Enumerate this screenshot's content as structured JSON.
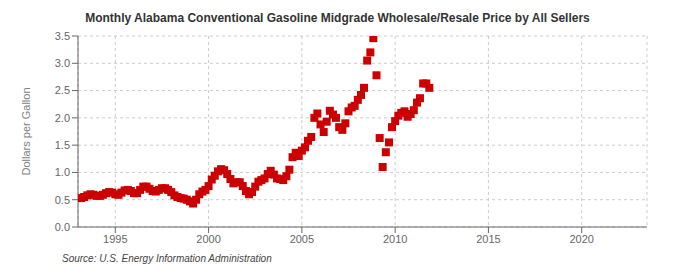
{
  "chart_data": {
    "type": "scatter",
    "title": "Monthly Alabama Conventional Gasoline Midgrade Wholesale/Resale Price by All Sellers",
    "ylabel": "Dollars per Gallon",
    "source": "Source: U.S. Energy Information Administration",
    "color": "#cc0000",
    "marker": "square",
    "grid": true,
    "xlim": [
      1993.0,
      2023.5
    ],
    "ylim": [
      0.0,
      3.5
    ],
    "xticks": [
      1995,
      2000,
      2005,
      2010,
      2015,
      2020
    ],
    "yticks": [
      {
        "value": 0.0,
        "label": "0.0"
      },
      0.5,
      {
        "value": 1.0,
        "label": "1.0"
      },
      1.5,
      {
        "value": 2.0,
        "label": "2.0"
      },
      2.5,
      {
        "value": 3.0,
        "label": "3.0"
      },
      3.5
    ],
    "x": [
      1993.17,
      1993.33,
      1993.5,
      1993.67,
      1993.83,
      1994.0,
      1994.17,
      1994.33,
      1994.5,
      1994.67,
      1994.83,
      1995.0,
      1995.17,
      1995.33,
      1995.5,
      1995.67,
      1995.83,
      1996.0,
      1996.17,
      1996.33,
      1996.5,
      1996.67,
      1996.83,
      1997.0,
      1997.17,
      1997.33,
      1997.5,
      1997.67,
      1997.83,
      1998.0,
      1998.17,
      1998.33,
      1998.5,
      1998.67,
      1998.83,
      1999.0,
      1999.17,
      1999.33,
      1999.5,
      1999.67,
      1999.83,
      2000.0,
      2000.17,
      2000.33,
      2000.5,
      2000.67,
      2000.83,
      2001.0,
      2001.17,
      2001.33,
      2001.5,
      2001.67,
      2001.83,
      2002.0,
      2002.17,
      2002.33,
      2002.5,
      2002.67,
      2002.83,
      2003.0,
      2003.17,
      2003.33,
      2003.5,
      2003.67,
      2003.83,
      2004.0,
      2004.17,
      2004.33,
      2004.5,
      2004.67,
      2004.83,
      2005.0,
      2005.17,
      2005.33,
      2005.5,
      2005.67,
      2005.83,
      2006.0,
      2006.17,
      2006.33,
      2006.5,
      2006.67,
      2006.83,
      2007.0,
      2007.17,
      2007.33,
      2007.5,
      2007.67,
      2007.83,
      2008.0,
      2008.17,
      2008.33,
      2008.5,
      2008.67,
      2008.83,
      2009.0,
      2009.17,
      2009.33,
      2009.5,
      2009.67,
      2009.83,
      2010.0,
      2010.17,
      2010.33,
      2010.5,
      2010.67,
      2010.83,
      2011.0,
      2011.17,
      2011.33,
      2011.5,
      2011.67,
      2011.83
    ],
    "values": [
      0.53,
      0.55,
      0.58,
      0.6,
      0.59,
      0.57,
      0.57,
      0.59,
      0.62,
      0.64,
      0.63,
      0.6,
      0.59,
      0.63,
      0.67,
      0.68,
      0.66,
      0.62,
      0.62,
      0.68,
      0.74,
      0.74,
      0.7,
      0.66,
      0.65,
      0.68,
      0.71,
      0.71,
      0.68,
      0.64,
      0.58,
      0.55,
      0.53,
      0.52,
      0.5,
      0.47,
      0.43,
      0.5,
      0.6,
      0.65,
      0.68,
      0.75,
      0.87,
      0.94,
      1.02,
      1.06,
      1.04,
      0.97,
      0.88,
      0.8,
      0.82,
      0.82,
      0.75,
      0.66,
      0.6,
      0.64,
      0.74,
      0.83,
      0.86,
      0.89,
      0.97,
      1.03,
      0.96,
      0.89,
      0.88,
      0.86,
      0.93,
      1.05,
      1.28,
      1.36,
      1.3,
      1.4,
      1.46,
      1.58,
      1.65,
      2.0,
      2.08,
      1.88,
      1.74,
      1.93,
      2.13,
      2.06,
      2.0,
      1.83,
      1.78,
      1.9,
      2.12,
      2.19,
      2.22,
      2.33,
      2.42,
      2.55,
      3.05,
      3.2,
      3.46,
      2.78,
      1.63,
      1.1,
      1.37,
      1.55,
      1.83,
      1.94,
      2.04,
      2.09,
      2.12,
      2.02,
      2.07,
      2.14,
      2.28,
      2.36,
      2.63,
      2.63,
      2.55
    ]
  }
}
